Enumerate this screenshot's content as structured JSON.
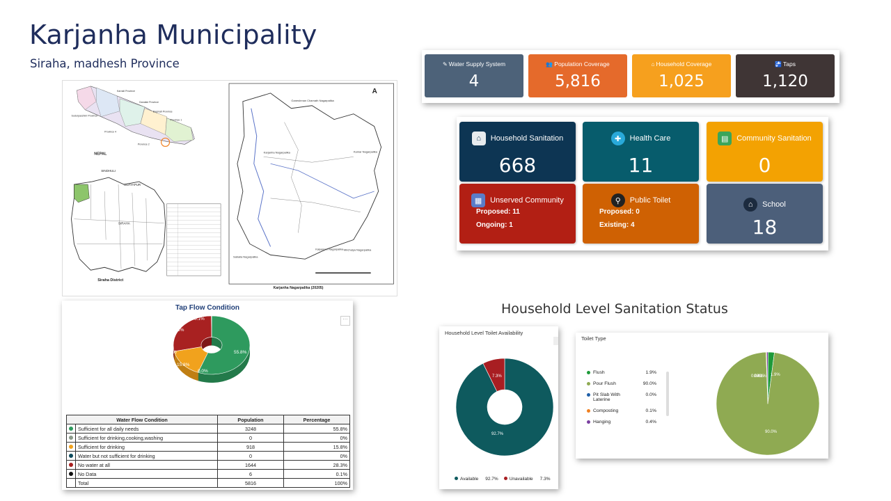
{
  "header": {
    "title": "Karjanha Municipality",
    "subtitle": "Siraha, madhesh Province"
  },
  "map": {
    "nepal_label": "NEPAL",
    "provinces": [
      "Karnali Province",
      "Gandaki Province",
      "Sudurpaschim Province",
      "Bagmati Province",
      "Province 1",
      "Province 4",
      "Province 2"
    ],
    "district_caption": "Siraha District",
    "district_neighbors": [
      "SINDHULI",
      "UDAYAPUR",
      "SIRAHA"
    ],
    "municipality_caption": "Karjanha Nagarpalika (20205)",
    "municipality_places": [
      "Golbazar Nagarpalika",
      "Ganeshman Charnath Nagarpalika",
      "Karjanha Nagarpalika",
      "Kalyanpur Nagarpalika",
      "Mirchaiya Nagarpalika",
      "Sabaila Nagarpalika",
      "Kamar Nagarpalika"
    ],
    "north_symbol": "A"
  },
  "stats": [
    {
      "icon": "✎",
      "icon_name": "edit-icon",
      "label": "Water Supply System",
      "value": "4",
      "color": "#4d6279"
    },
    {
      "icon": "👥",
      "icon_name": "users-icon",
      "label": "Population Coverage",
      "value": "5,816",
      "color": "#e56a2b"
    },
    {
      "icon": "⌂",
      "icon_name": "home-icon",
      "label": "Household Coverage",
      "value": "1,025",
      "color": "#f6a01e"
    },
    {
      "icon": "🚰",
      "icon_name": "tap-icon",
      "label": "Taps",
      "value": "1,120",
      "color": "#3f3535"
    }
  ],
  "cards": {
    "household_sanitation": {
      "label": "Household Sanitation",
      "value": "668",
      "color": "#0d3553"
    },
    "health_care": {
      "label": "Health Care",
      "value": "11",
      "color": "#075c6c"
    },
    "community_sanitation": {
      "label": "Community Sanitation",
      "value": "0",
      "color": "#f3a202"
    },
    "unserved_community": {
      "label": "Unserved Community",
      "proposed": "Proposed: 11",
      "ongoing": "Ongoing: 1",
      "color": "#b21f14"
    },
    "public_toilet": {
      "label": "Public Toilet",
      "proposed": "Proposed: 0",
      "existing": "Existing: 4",
      "color": "#cf6103"
    },
    "school": {
      "label": "School",
      "value": "18",
      "color": "#4c5f7a"
    }
  },
  "tap_flow": {
    "title": "Tap Flow Condition",
    "chart_data": {
      "type": "pie",
      "labels": [
        "Sufficient for all daily needs",
        "Sufficient for drinking,cooking,washing",
        "Sufficient for drinking",
        "Water but not sufficient for drinking",
        "No water at all",
        "No Data"
      ],
      "values": [
        55.8,
        0.0,
        15.8,
        0.0,
        28.3,
        0.1
      ],
      "data_labels": [
        "55.8%",
        "0.0%",
        "15.8%",
        "0.0%",
        "28.3%",
        "0.1%"
      ],
      "colors": [
        "#2e9a5e",
        "#8a9a8a",
        "#f1a21d",
        "#0d4a5c",
        "#a82121",
        "#111111"
      ]
    },
    "table": {
      "headers": [
        "Water Flow Condition",
        "Population",
        "Percentage"
      ],
      "rows": [
        {
          "color": "#2e9a5e",
          "condition": "Sufficient for all daily needs",
          "population": "3248",
          "percentage": "55.8%"
        },
        {
          "color": "#8a9a8a",
          "condition": "Sufficient for drinking,cooking,washing",
          "population": "0",
          "percentage": "0%"
        },
        {
          "color": "#f1a21d",
          "condition": "Sufficient for drinking",
          "population": "918",
          "percentage": "15.8%"
        },
        {
          "color": "#0d4a5c",
          "condition": "Water but not sufficient for drinking",
          "population": "0",
          "percentage": "0%"
        },
        {
          "color": "#a82121",
          "condition": "No water at all",
          "population": "1644",
          "percentage": "28.3%"
        },
        {
          "color": "#111111",
          "condition": "No Data",
          "population": "6",
          "percentage": "0.1%"
        },
        {
          "color": "",
          "condition": "Total",
          "population": "5816",
          "percentage": "100%"
        }
      ]
    }
  },
  "household_section_title": "Household Level Sanitation Status",
  "toilet_availability": {
    "title": "Household Level Toilet Availability",
    "chart_data": {
      "type": "pie",
      "labels": [
        "Available",
        "Unavailable"
      ],
      "values": [
        92.7,
        7.3
      ],
      "data_labels": [
        "92.7%",
        "7.3%"
      ],
      "colors": [
        "#0e5a5e",
        "#a81e22"
      ]
    },
    "legend": [
      {
        "label": "Available",
        "value": "92.7%",
        "color": "#0e5a5e"
      },
      {
        "label": "Unavailable",
        "value": "7.3%",
        "color": "#a81e22"
      }
    ]
  },
  "toilet_type": {
    "title": "Toilet Type",
    "chart_data": {
      "type": "pie",
      "labels": [
        "Flush",
        "Pour Flush",
        "Pit Slab With Laterine",
        "Composting",
        "Hanging"
      ],
      "values": [
        1.9,
        90.0,
        0.0,
        0.1,
        0.4
      ],
      "data_labels": [
        "1.9%",
        "90.0%",
        "0.0%",
        "0.1%",
        "0.4%"
      ],
      "colors": [
        "#1e9a3a",
        "#8faa52",
        "#1f5fa8",
        "#f08020",
        "#7a3fa0"
      ]
    },
    "legend": [
      {
        "label": "Flush",
        "value": "1.9%",
        "color": "#1e9a3a"
      },
      {
        "label": "Pour Flush",
        "value": "90.0%",
        "color": "#8faa52"
      },
      {
        "label": "Pit Slab With Laterine",
        "value": "0.0%",
        "color": "#1f5fa8"
      },
      {
        "label": "Composting",
        "value": "0.1%",
        "color": "#f08020"
      },
      {
        "label": "Hanging",
        "value": "0.4%",
        "color": "#7a3fa0"
      }
    ]
  }
}
